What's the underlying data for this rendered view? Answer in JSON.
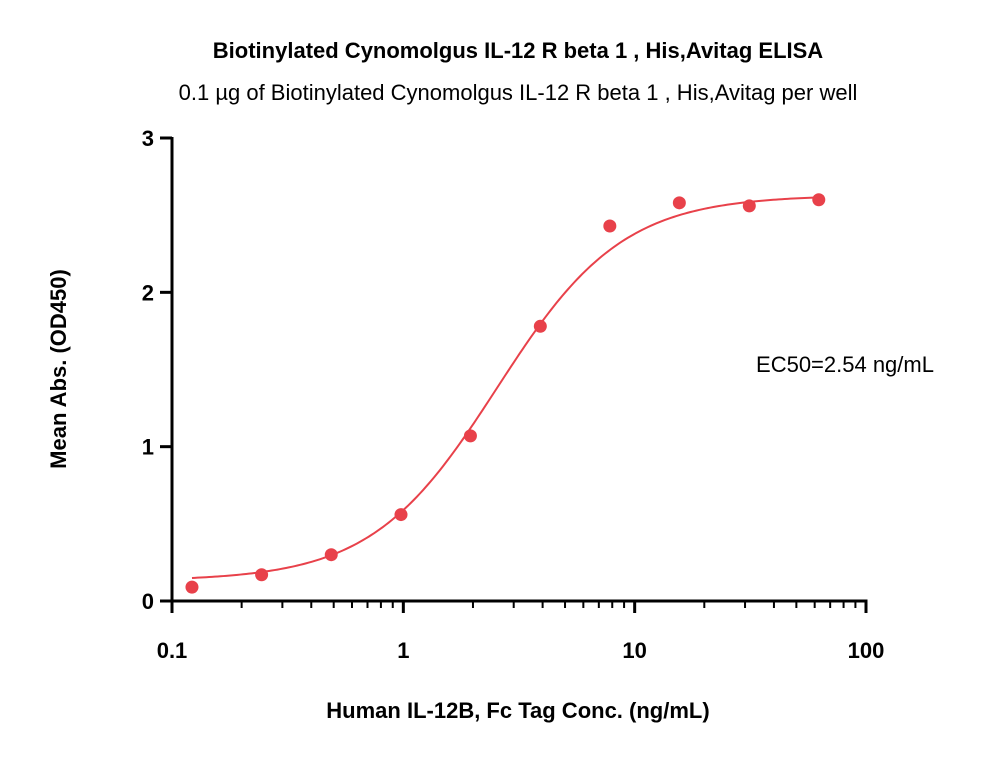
{
  "chart_data": {
    "type": "scatter",
    "title": "Biotinylated Cynomolgus IL-12 R beta 1 , His,Avitag ELISA",
    "subtitle": "0.1 µg of Biotinylated Cynomolgus IL-12 R beta 1 , His,Avitag per well",
    "xlabel": "Human IL-12B, Fc Tag Conc. (ng/mL)",
    "ylabel": "Mean Abs. (OD450)",
    "x_scale": "log",
    "xlim": [
      0.1,
      100
    ],
    "ylim": [
      0,
      3
    ],
    "x_ticks": [
      0.1,
      1,
      10,
      100
    ],
    "x_tick_labels": [
      "0.1",
      "1",
      "10",
      "100"
    ],
    "y_ticks": [
      0,
      1,
      2,
      3
    ],
    "y_tick_labels": [
      "0",
      "1",
      "2",
      "3"
    ],
    "grid": false,
    "annotation": "EC50=2.54 ng/mL",
    "color": "#e8414a",
    "series": [
      {
        "x": [
          0.122,
          0.244,
          0.488,
          0.977,
          1.95,
          3.91,
          7.81,
          15.6,
          31.3,
          62.5
        ],
        "y": [
          0.09,
          0.17,
          0.3,
          0.56,
          1.07,
          1.78,
          2.43,
          2.58,
          2.56,
          2.6
        ],
        "fit": {
          "bottom": 0.13,
          "top": 2.63,
          "ec50": 2.54,
          "hill": 1.6
        }
      }
    ]
  }
}
